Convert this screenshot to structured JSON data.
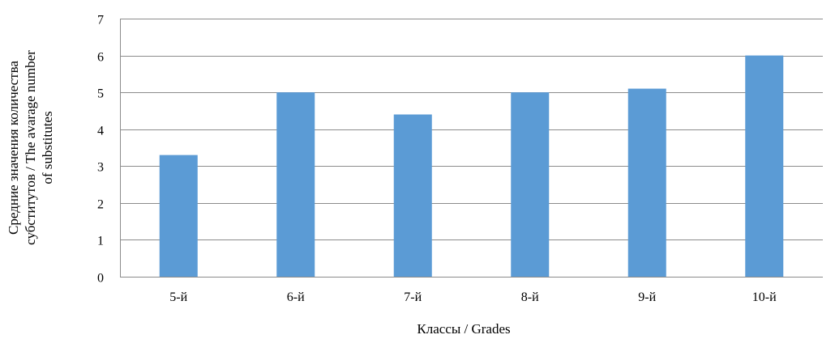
{
  "chart_data": {
    "type": "bar",
    "title": "",
    "categories": [
      "5-й",
      "6-й",
      "7-й",
      "8-й",
      "9-й",
      "10-й"
    ],
    "values": [
      3.3,
      5.0,
      4.4,
      5.0,
      5.1,
      6.0
    ],
    "xlabel": "Классы / Grades",
    "ylabel_lines": [
      "Средние значения количества",
      "субститутов / The avarage number",
      "of substitutes"
    ],
    "ylim": [
      0,
      7
    ],
    "yticks": [
      0,
      1,
      2,
      3,
      4,
      5,
      6,
      7
    ],
    "grid": true,
    "legend": "none",
    "colors": {
      "bar": "#5b9bd5",
      "grid": "#8c8c8c",
      "axis": "#8c8c8c"
    }
  }
}
